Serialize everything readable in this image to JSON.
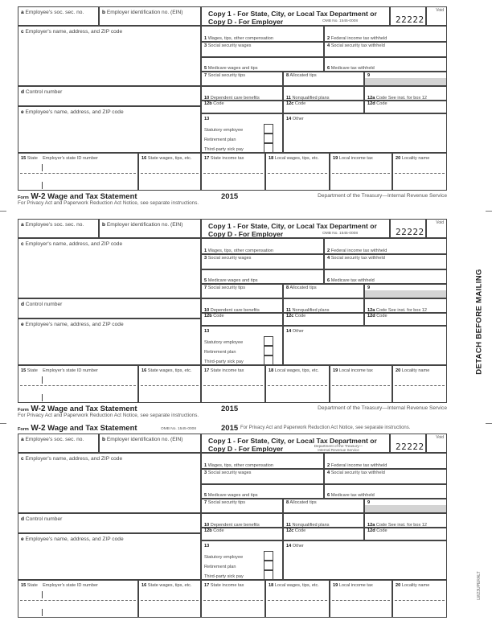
{
  "boxes": {
    "a": "Employee's soc. sec. no.",
    "a_letter": "a",
    "b": "Employer identification no. (EIN)",
    "b_letter": "b",
    "copy_line1": "Copy 1 - For State, City, or Local Tax Department or",
    "copy_line2": "Copy D - For Employer",
    "form_code": "22222",
    "void": "Void",
    "c_letter": "c",
    "c": "Employer's name, address, and ZIP code",
    "d_letter": "d",
    "d": "Control number",
    "e_letter": "e",
    "e": "Employee's name, address, and ZIP code",
    "b1": "Wages, tips, other compensation",
    "b2": "Federal income tax withheld",
    "b3": "Social security wages",
    "b4": "Social security tax withheld",
    "b5": "Medicare wages and tips",
    "b6": "Medicare tax withheld",
    "b7": "Social security tips",
    "b8": "Allocated tips",
    "b9": "",
    "b10": "Dependent care benefits",
    "b11": "Nonqualified plans",
    "b12a": "Code See inst. for box 12",
    "b12b": "Code",
    "b12c": "Code",
    "b12d": "Code",
    "b13": "",
    "b13_statutory": "Statutory employee",
    "b13_retirement": "Retirement plan",
    "b13_sick": "Third-party sick pay",
    "b14": "Other",
    "b15": "State",
    "b15_id": "Employer's state ID number",
    "b16": "State wages, tips, etc.",
    "b17": "State income tax",
    "b18": "Local wages, tips, etc.",
    "b19": "Local income tax",
    "b20": "Locality name",
    "n": {
      "1": "1",
      "2": "2",
      "3": "3",
      "4": "4",
      "5": "5",
      "6": "6",
      "7": "7",
      "8": "8",
      "9": "9",
      "10": "10",
      "11": "11",
      "12a": "12a",
      "12b": "12b",
      "12c": "12c",
      "12d": "12d",
      "13": "13",
      "14": "14",
      "15": "15",
      "16": "16",
      "17": "17",
      "18": "18",
      "19": "19",
      "20": "20"
    }
  },
  "footer": {
    "form_word": "Form",
    "form_name": "W-2",
    "form_title": "Wage and Tax Statement",
    "year": "2015",
    "department": "Department of the Treasury—Internal Revenue Service",
    "privacy": "For Privacy Act and Paperwork Reduction Act Notice, see separate instructions.",
    "omb": "OMB No. 1545-0008",
    "department_short": "Department of the Treasury— Internal Revenue Service"
  },
  "side": {
    "detach": "DETACH BEFORE MAILING",
    "stock_code": "LW23UPERALT"
  }
}
